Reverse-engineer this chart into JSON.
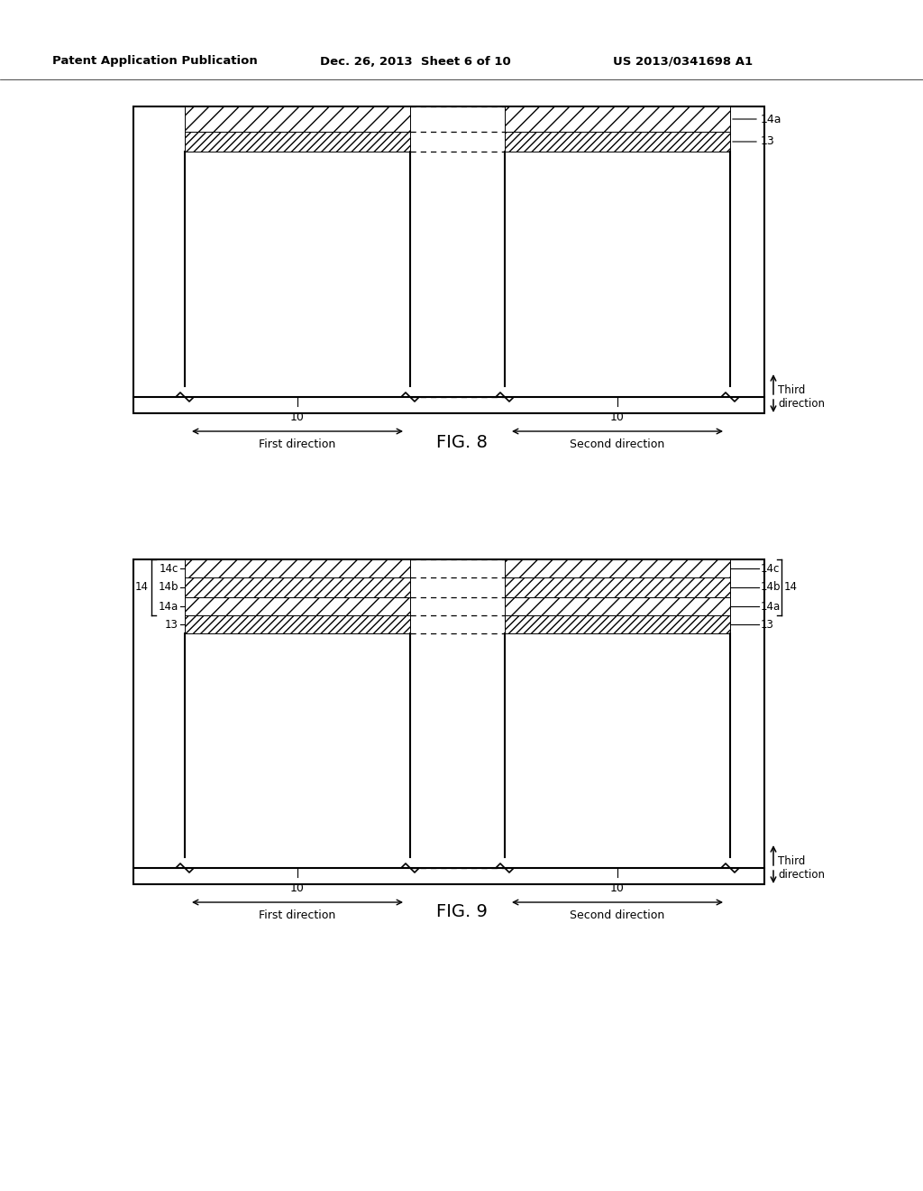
{
  "header_left": "Patent Application Publication",
  "header_mid": "Dec. 26, 2013  Sheet 6 of 10",
  "header_right": "US 2013/0341698 A1",
  "fig8_label": "FIG. 8",
  "fig9_label": "FIG. 9",
  "background": "#ffffff"
}
